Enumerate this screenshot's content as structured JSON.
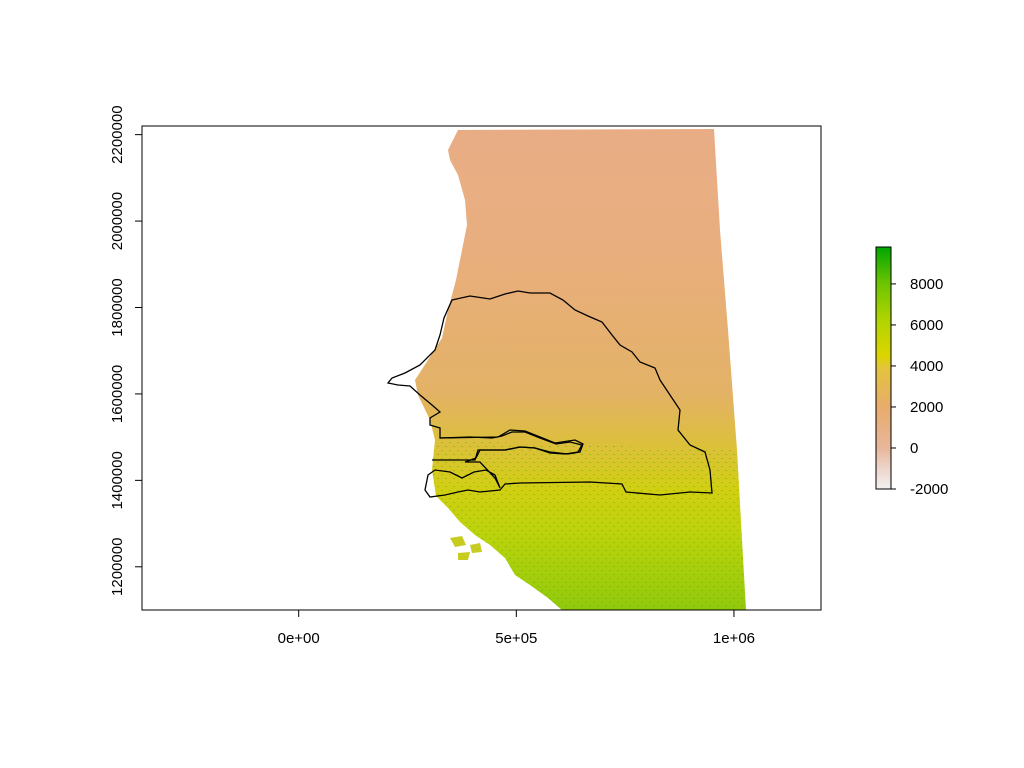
{
  "chart_data": {
    "type": "heatmap",
    "title": "",
    "xlabel": "",
    "ylabel": "",
    "xlim": [
      -360000,
      1200000
    ],
    "ylim": [
      1100000,
      2220000
    ],
    "x_ticks": [
      {
        "value": 0,
        "label": "0e+00"
      },
      {
        "value": 500000,
        "label": "5e+05"
      },
      {
        "value": 1000000,
        "label": "1e+06"
      }
    ],
    "y_ticks": [
      {
        "value": 1200000,
        "label": "1200000"
      },
      {
        "value": 1400000,
        "label": "1400000"
      },
      {
        "value": 1600000,
        "label": "1600000"
      },
      {
        "value": 1800000,
        "label": "1800000"
      },
      {
        "value": 2000000,
        "label": "2000000"
      },
      {
        "value": 2200000,
        "label": "2200000"
      }
    ],
    "legend": {
      "placement": "right",
      "range": [
        -2000,
        9800
      ],
      "ticks": [
        {
          "value": -2000,
          "label": "-2000"
        },
        {
          "value": 0,
          "label": "0"
        },
        {
          "value": 2000,
          "label": "2000"
        },
        {
          "value": 4000,
          "label": "4000"
        },
        {
          "value": 6000,
          "label": "6000"
        },
        {
          "value": 8000,
          "label": "8000"
        }
      ],
      "colors": [
        "#f2f2f2",
        "#eac9b8",
        "#e8b08c",
        "#e8ac6c",
        "#e2c04c",
        "#dcd400",
        "#b5d600",
        "#7ccb00",
        "#46b800",
        "#00a600"
      ]
    },
    "raster": {
      "description_colors": {
        "north": "#e8ac80",
        "central": "#e0b45c",
        "south": "#c8d010",
        "far_south": "#8cc40c"
      }
    }
  }
}
